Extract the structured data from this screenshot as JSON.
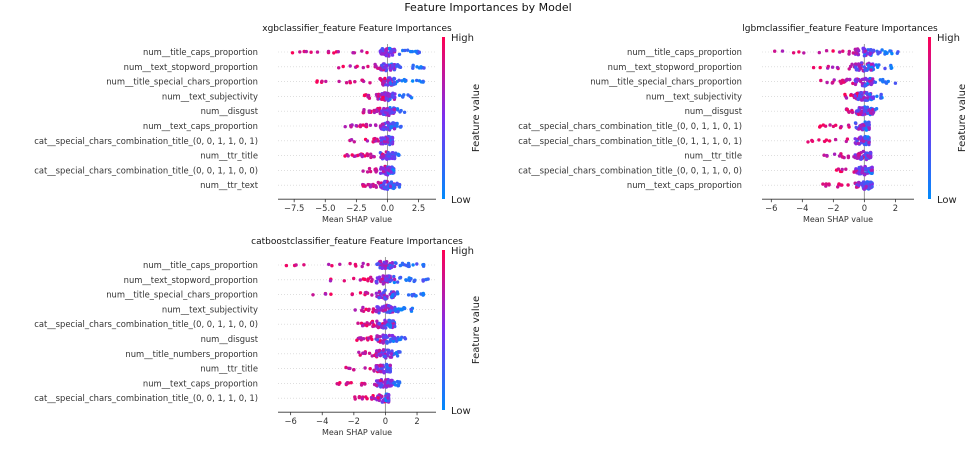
{
  "figure_title": "Feature Importances by Model",
  "colorbar": {
    "label": "Feature value",
    "high": "High",
    "low": "Low",
    "color_high": "#ff0052",
    "color_mid": "#7b2ff0",
    "color_low": "#008bfb"
  },
  "chart_data": [
    {
      "type": "scatter",
      "subtype": "shap-beeswarm",
      "title": "xgbclassifier_feature Feature Importances",
      "xlabel": "Mean SHAP value",
      "ylabel": "",
      "xlim": [
        -8.8,
        3.9
      ],
      "xticks": [
        -7.5,
        -5.0,
        -2.5,
        0.0,
        2.5
      ],
      "xtick_labels": [
        "−7.5",
        "−5.0",
        "−2.5",
        "0.0",
        "2.5"
      ],
      "categories": [
        "num__title_caps_proportion",
        "num__text_stopword_proportion",
        "num__title_special_chars_proportion",
        "num__text_subjectivity",
        "num__disgust",
        "num__text_caps_proportion",
        "cat__special_chars_combination_title_(0, 0, 1, 1, 0, 1)",
        "num__ttr_title",
        "cat__special_chars_combination_title_(0, 0, 1, 1, 0, 0)",
        "num__ttr_text"
      ],
      "feature_ranges": [
        [
          -8,
          2.6
        ],
        [
          -4,
          3.0
        ],
        [
          -6,
          3.0
        ],
        [
          -2,
          2.0
        ],
        [
          -2,
          1.5
        ],
        [
          -3.5,
          1.2
        ],
        [
          -3.3,
          0.4
        ],
        [
          -3.5,
          1.0
        ],
        [
          -2,
          0.5
        ],
        [
          -2,
          1.0
        ]
      ]
    },
    {
      "type": "scatter",
      "subtype": "shap-beeswarm",
      "title": "lgbmclassifier_feature Feature Importances",
      "xlabel": "Mean SHAP value",
      "ylabel": "",
      "xlim": [
        -6.6,
        3.2
      ],
      "xticks": [
        -6,
        -4,
        -2,
        0,
        2
      ],
      "xtick_labels": [
        "−6",
        "−4",
        "−2",
        "0",
        "2"
      ],
      "categories": [
        "num__title_caps_proportion",
        "num__text_stopword_proportion",
        "num__title_special_chars_proportion",
        "num__text_subjectivity",
        "num__disgust",
        "cat__special_chars_combination_title_(0, 0, 1, 1, 0, 1)",
        "cat__special_chars_combination_title_(0, 1, 1, 1, 0, 1)",
        "num__ttr_title",
        "cat__special_chars_combination_title_(0, 0, 1, 1, 0, 0)",
        "num__text_caps_proportion"
      ],
      "feature_ranges": [
        [
          -6.2,
          2.2
        ],
        [
          -3.3,
          2.4
        ],
        [
          -3.0,
          2.1
        ],
        [
          -1.5,
          1.3
        ],
        [
          -1.3,
          0.8
        ],
        [
          -3.0,
          0.3
        ],
        [
          -3.7,
          0.3
        ],
        [
          -2.8,
          0.4
        ],
        [
          -2.5,
          0.5
        ],
        [
          -2.7,
          0.5
        ]
      ]
    },
    {
      "type": "scatter",
      "subtype": "shap-beeswarm",
      "title": "catboostclassifier_feature Feature Importances",
      "xlabel": "Mean SHAP value",
      "ylabel": "",
      "xlim": [
        -6.8,
        3.2
      ],
      "xticks": [
        -6,
        -4,
        -2,
        0,
        2
      ],
      "xtick_labels": [
        "−6",
        "−4",
        "−2",
        "0",
        "2"
      ],
      "categories": [
        "num__title_caps_proportion",
        "num__text_stopword_proportion",
        "num__title_special_chars_proportion",
        "num__text_subjectivity",
        "cat__special_chars_combination_title_(0, 0, 1, 1, 0, 0)",
        "num__disgust",
        "num__title_numbers_proportion",
        "num__ttr_title",
        "num__text_caps_proportion",
        "cat__special_chars_combination_title_(0, 0, 1, 1, 0, 1)"
      ],
      "feature_ranges": [
        [
          -6.3,
          2.6
        ],
        [
          -3.7,
          2.8
        ],
        [
          -4.7,
          2.7
        ],
        [
          -2.0,
          1.8
        ],
        [
          -1.8,
          0.6
        ],
        [
          -1.9,
          1.3
        ],
        [
          -1.7,
          1.3
        ],
        [
          -2.6,
          0.3
        ],
        [
          -3.2,
          0.9
        ],
        [
          -2.0,
          0.2
        ]
      ]
    }
  ]
}
